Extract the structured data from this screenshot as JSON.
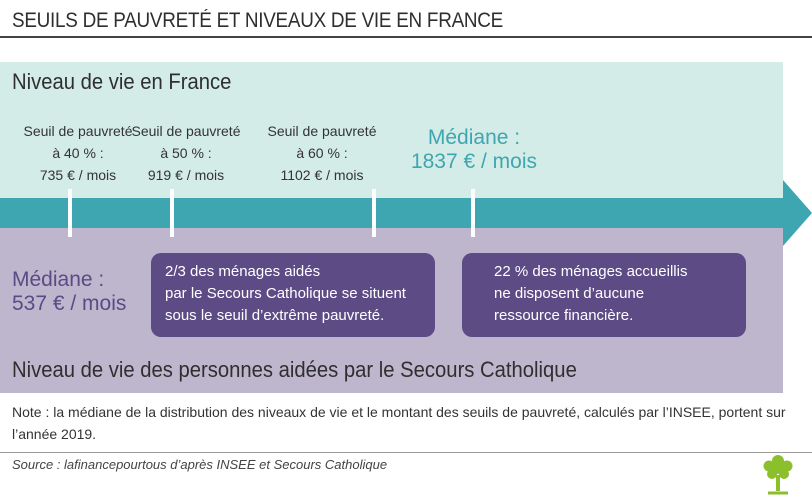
{
  "title": "SEUILS DE PAUVRETÉ ET NIVEAUX DE VIE EN FRANCE",
  "top_panel": {
    "heading": "Niveau de vie en France",
    "thresholds": [
      {
        "line1": "Seuil de pauvreté",
        "line2": "à 40 % :",
        "line3": "735 € / mois"
      },
      {
        "line1": "Seuil de pauvreté",
        "line2": "à 50 % :",
        "line3": "919 € / mois"
      },
      {
        "line1": "Seuil de pauvreté",
        "line2": "à 60 % :",
        "line3": "1102 € / mois"
      }
    ],
    "median": {
      "label": "Médiane :",
      "value": "1837 € / mois"
    }
  },
  "bottom_panel": {
    "median": {
      "label": "Médiane :",
      "value": "537 € / mois"
    },
    "callouts": [
      {
        "line1": "2/3 des ménages aidés",
        "line2": "par le Secours Catholique se situent",
        "line3": "sous le seuil d’extrême pauvreté."
      },
      {
        "line1": "22 % des ménages accueillis",
        "line2": "ne disposent d’aucune",
        "line3": "ressource financière."
      }
    ],
    "heading": "Niveau de vie des personnes aidées par le Secours Catholique"
  },
  "note": "Note : la médiane de la distribution des niveaux de vie et le montant des seuils de pauvreté, calculés par l’INSEE, portent sur l’année 2019.",
  "source": "Source : lafinancepourtous d’après INSEE et Secours Catholique",
  "colors": {
    "arrow": "#3ea6b0",
    "top_panel": "#d4ece7",
    "bottom_panel": "#bdb6cd",
    "callout": "#5d4b85",
    "median_top": "#3ea6b0",
    "median_bottom": "#5a4b86",
    "logo": "#8cbf2c"
  },
  "icons": {
    "logo": "tree-logo-icon"
  }
}
